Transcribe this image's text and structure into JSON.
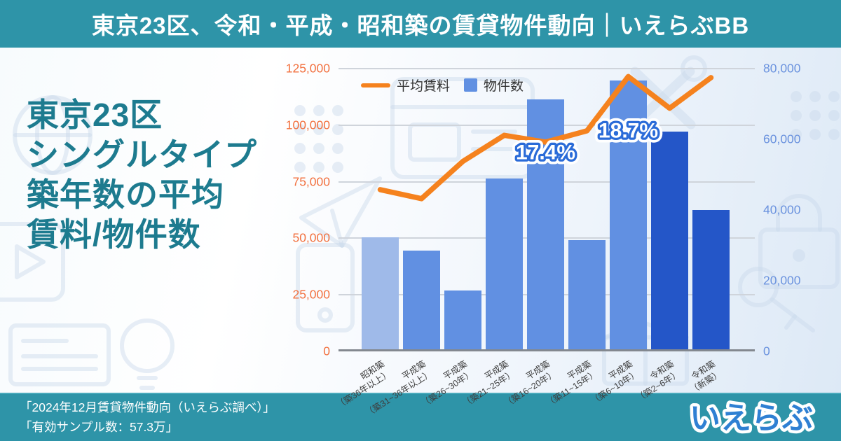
{
  "header": {
    "title": "東京23区、令和・平成・昭和築の賃貸物件動向｜いえらぶBB",
    "bg_color": "#2E94A8"
  },
  "headline": {
    "lines": [
      "東京23区",
      "シングルタイプ",
      "築年数の平均",
      "賃料/物件数"
    ],
    "color": "#1D7B8F"
  },
  "chart_data": {
    "type": "bar+line combo",
    "title": "東京23区 シングルタイプ 築年数の平均賃料/物件数",
    "grid": true,
    "legend_position": "top-left",
    "categories": [
      {
        "era": "昭和築",
        "range": "（築36年以上）"
      },
      {
        "era": "平成築",
        "range": "（築31~36年以上）"
      },
      {
        "era": "平成築",
        "range": "（築26~30年）"
      },
      {
        "era": "平成築",
        "range": "（築21~25年）"
      },
      {
        "era": "平成築",
        "range": "（築16~20年）"
      },
      {
        "era": "平成築",
        "range": "（築11~15年）"
      },
      {
        "era": "平成築",
        "range": "（築6~10年）"
      },
      {
        "era": "令和築",
        "range": "（築2~6年）"
      },
      {
        "era": "令和築",
        "range": "（新築）"
      }
    ],
    "series": [
      {
        "name": "物件数",
        "type": "bar",
        "axis": "right",
        "values": [
          32300,
          28600,
          17200,
          48900,
          71200,
          31400,
          76600,
          62200,
          40100
        ],
        "colors": [
          "#9FBAE9",
          "#6190E2",
          "#6190E2",
          "#6190E2",
          "#6190E2",
          "#6190E2",
          "#6190E2",
          "#2456C8",
          "#2456C8"
        ]
      },
      {
        "name": "平均賃料",
        "type": "line",
        "axis": "left",
        "values": [
          71500,
          67500,
          84000,
          95500,
          92500,
          97500,
          121500,
          107500,
          121000
        ],
        "color": "#F5821E"
      }
    ],
    "left_axis": {
      "max": 125000,
      "tick_values": [
        125000,
        100000,
        75000,
        50000,
        25000,
        0
      ],
      "ticks": [
        "125,000",
        "100,000",
        "75,000",
        "50,000",
        "25,000",
        "0"
      ],
      "color": "#F2703E"
    },
    "right_axis": {
      "max": 80000,
      "tick_values": [
        80000,
        60000,
        40000,
        20000,
        0
      ],
      "ticks": [
        "80,000",
        "60,000",
        "40,000",
        "20,000",
        "0"
      ],
      "color": "#6A92DE"
    },
    "annotations": [
      {
        "label": "17.4%",
        "category_index": 4,
        "at_value": 85000
      },
      {
        "label": "18.7%",
        "category_index": 6,
        "at_value": 94500
      }
    ]
  },
  "footer": {
    "source_line1": "「2024年12月賃貸物件動向（いえらぶ調べ）」",
    "source_line2": "「有効サンプル数：57.3万」",
    "logo_text": "いえらぶ",
    "logo_color": "#2F80D3"
  }
}
